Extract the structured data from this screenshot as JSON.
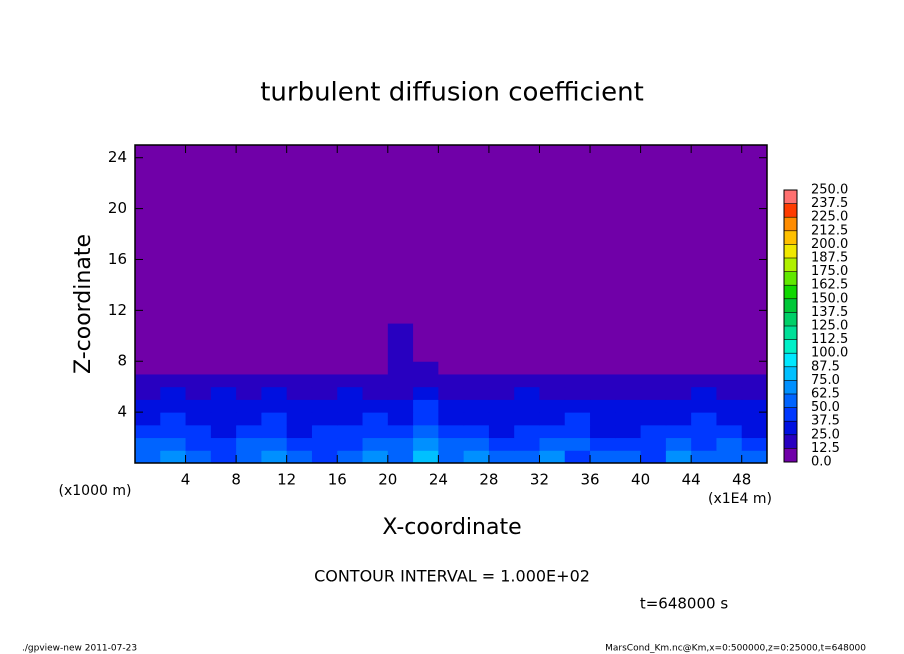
{
  "chart_data": {
    "type": "heatmap",
    "title": "turbulent diffusion coefficient",
    "x_label": "X-coordinate",
    "y_label": "Z-coordinate",
    "x_unit": "(x1E4 m)",
    "y_unit": "(x1000 m)",
    "contour_interval": "CONTOUR INTERVAL = 1.000E+02",
    "time_label": "t=648000 s",
    "footer_left": "./gpview-new  2011-07-23",
    "footer_right": "MarsCond_Km.nc@Km,x=0:500000,z=0:25000,t=648000",
    "xlim": [
      0,
      50
    ],
    "ylim": [
      0,
      25
    ],
    "xticks": [
      4,
      8,
      12,
      16,
      20,
      24,
      28,
      32,
      36,
      40,
      44,
      48
    ],
    "yticks": [
      4,
      8,
      12,
      16,
      20,
      24
    ],
    "xbins": [
      0,
      2,
      4,
      6,
      8,
      10,
      12,
      14,
      16,
      18,
      20,
      22,
      24,
      26,
      28,
      30,
      32,
      34,
      36,
      38,
      40,
      42,
      44,
      46,
      48,
      50
    ],
    "ybins": [
      0,
      1,
      2,
      3,
      4,
      5,
      6,
      7,
      8,
      11,
      25
    ],
    "z": [
      [
        50,
        62.5,
        50,
        37.5,
        50,
        62.5,
        50,
        37.5,
        50,
        62.5,
        50,
        75,
        50,
        62.5,
        50,
        50,
        62.5,
        37.5,
        50,
        50,
        37.5,
        62.5,
        50,
        50,
        50
      ],
      [
        50,
        50,
        37.5,
        37.5,
        50,
        50,
        37.5,
        37.5,
        37.5,
        50,
        50,
        62.5,
        50,
        50,
        37.5,
        37.5,
        50,
        50,
        37.5,
        37.5,
        37.5,
        50,
        37.5,
        50,
        37.5
      ],
      [
        37.5,
        37.5,
        37.5,
        25,
        37.5,
        37.5,
        25,
        37.5,
        37.5,
        37.5,
        37.5,
        50,
        37.5,
        37.5,
        25,
        37.5,
        37.5,
        37.5,
        25,
        25,
        37.5,
        37.5,
        37.5,
        37.5,
        25
      ],
      [
        25,
        37.5,
        25,
        25,
        25,
        37.5,
        25,
        25,
        25,
        37.5,
        25,
        37.5,
        25,
        25,
        25,
        25,
        25,
        37.5,
        25,
        25,
        25,
        25,
        37.5,
        25,
        25
      ],
      [
        25,
        25,
        25,
        25,
        25,
        25,
        25,
        25,
        25,
        25,
        25,
        37.5,
        25,
        25,
        25,
        25,
        25,
        25,
        25,
        25,
        25,
        25,
        25,
        25,
        25
      ],
      [
        12.5,
        25,
        12.5,
        25,
        12.5,
        25,
        12.5,
        12.5,
        25,
        12.5,
        12.5,
        25,
        12.5,
        12.5,
        12.5,
        25,
        12.5,
        12.5,
        12.5,
        12.5,
        12.5,
        12.5,
        25,
        12.5,
        12.5
      ],
      [
        12.5,
        12.5,
        12.5,
        12.5,
        12.5,
        12.5,
        12.5,
        12.5,
        12.5,
        12.5,
        12.5,
        12.5,
        12.5,
        12.5,
        12.5,
        12.5,
        12.5,
        12.5,
        12.5,
        12.5,
        12.5,
        12.5,
        12.5,
        12.5,
        12.5
      ],
      [
        0,
        0,
        0,
        0,
        0,
        0,
        0,
        0,
        0,
        0,
        12.5,
        12.5,
        0,
        0,
        0,
        0,
        0,
        0,
        0,
        0,
        0,
        0,
        0,
        0,
        0
      ],
      [
        0,
        0,
        0,
        0,
        0,
        0,
        0,
        0,
        0,
        0,
        12.5,
        0,
        0,
        0,
        0,
        0,
        0,
        0,
        0,
        0,
        0,
        0,
        0,
        0,
        0
      ],
      [
        0,
        0,
        0,
        0,
        0,
        0,
        0,
        0,
        0,
        0,
        0,
        0,
        0,
        0,
        0,
        0,
        0,
        0,
        0,
        0,
        0,
        0,
        0,
        0,
        0
      ]
    ],
    "levels": [
      {
        "value": 0,
        "label": "0.0"
      },
      12.5,
      {
        "value": 25,
        "label": "25.0"
      },
      37.5,
      {
        "value": 50,
        "label": "50.0"
      },
      62.5,
      {
        "value": 75,
        "label": "75.0"
      },
      87.5,
      {
        "value": 100,
        "label": "100.0"
      },
      112.5,
      {
        "value": 125,
        "label": "125.0"
      },
      137.5,
      {
        "value": 150,
        "label": "150.0"
      },
      162.5,
      {
        "value": 175,
        "label": "175.0"
      },
      187.5,
      {
        "value": 200,
        "label": "200.0"
      },
      212.5,
      {
        "value": 225,
        "label": "225.0"
      },
      237.5,
      {
        "value": 250,
        "label": "250.0"
      }
    ],
    "colors": [
      "#7000a8",
      "#2800c0",
      "#0010e0",
      "#0038ff",
      "#0064ff",
      "#0090ff",
      "#00c0ff",
      "#00e8ff",
      "#00f0c8",
      "#00e098",
      "#00d068",
      "#00c838",
      "#10d800",
      "#60e800",
      "#b0f000",
      "#f0e800",
      "#ffc000",
      "#ff8c00",
      "#ff3c00",
      "#ff7070"
    ]
  }
}
